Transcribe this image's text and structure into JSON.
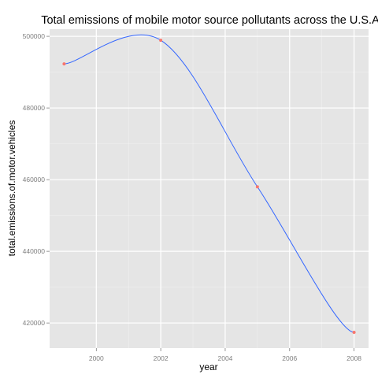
{
  "chart_data": {
    "type": "line",
    "title": "Total emissions of mobile motor source pollutants across the U.S.A.",
    "xlabel": "year",
    "ylabel": "total.emissions.of.motor.vehicles",
    "xlim": [
      1998.55,
      2008.45
    ],
    "ylim": [
      413000,
      502000
    ],
    "x_ticks": [
      2000,
      2002,
      2004,
      2006,
      2008
    ],
    "y_ticks": [
      420000,
      440000,
      460000,
      480000,
      500000
    ],
    "x_tick_labels": [
      "2000",
      "2002",
      "2004",
      "2006",
      "2008"
    ],
    "y_tick_labels": [
      "420000",
      "440000",
      "460000",
      "480000",
      "500000"
    ],
    "series": [
      {
        "x": [
          1999,
          2002,
          2005,
          2008
        ],
        "y": [
          492300,
          498900,
          458000,
          417400
        ]
      }
    ],
    "grid": true,
    "legend": "none",
    "colors": {
      "panel_background": "#e5e5e5",
      "grid": "#ffffff",
      "line": "#3366ff",
      "points": "#f8766d"
    }
  }
}
